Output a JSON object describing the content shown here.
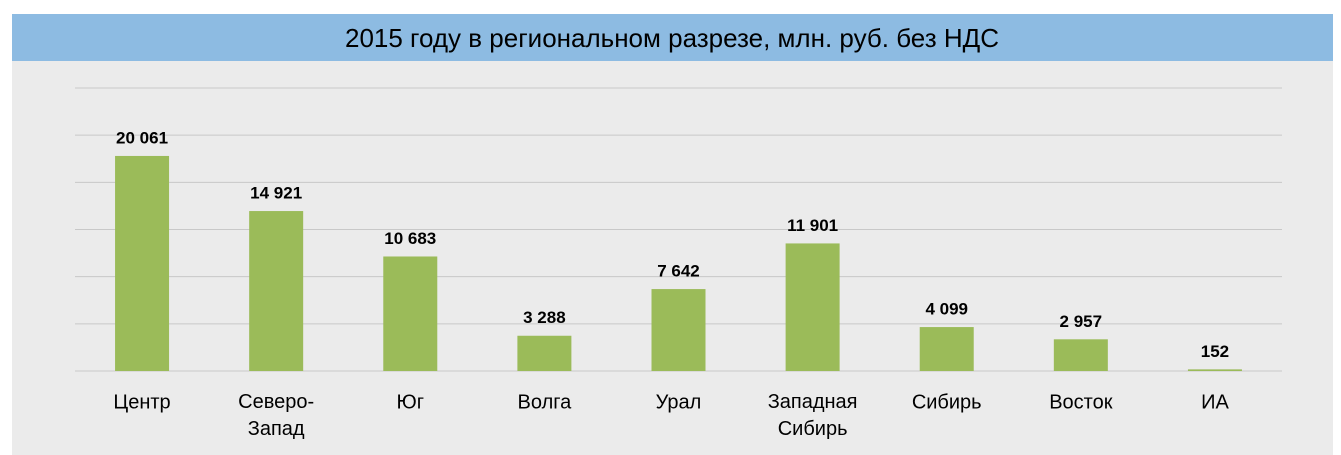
{
  "chart_data": {
    "type": "bar",
    "title": "2015 году в региональном разрезе, млн. руб. без НДС",
    "categories": [
      "Центр",
      "Северо-Запад",
      "Юг",
      "Волга",
      "Урал",
      "Западная Сибирь",
      "Сибирь",
      "Восток",
      "ИА"
    ],
    "values": [
      20061,
      14921,
      10683,
      3288,
      7642,
      11901,
      4099,
      2957,
      152
    ],
    "value_labels": [
      "20 061",
      "14 921",
      "10 683",
      "3 288",
      "7 642",
      "11 901",
      "4 099",
      "2 957",
      "152"
    ],
    "color": "#9bbb59",
    "ylim": [
      0,
      26400
    ],
    "yticks": [
      0,
      4400,
      8800,
      13200,
      17600,
      22000,
      26400
    ],
    "grid": true
  }
}
